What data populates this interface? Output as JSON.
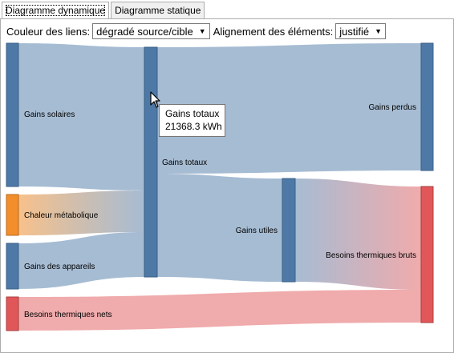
{
  "tabs": [
    {
      "label": "Diagramme dynamique",
      "active": true
    },
    {
      "label": "Diagramme statique",
      "active": false
    }
  ],
  "controls": {
    "link_color_label": "Couleur des liens:",
    "link_color_value": "dégradé source/cible",
    "alignment_label": "Alignement des éléments:",
    "alignment_value": "justifié"
  },
  "nodes": {
    "gains_solaires": {
      "label": "Gains solaires",
      "color": "#4e79a7"
    },
    "chaleur_metabolique": {
      "label": "Chaleur métabolique",
      "color": "#f28e2b"
    },
    "gains_appareils": {
      "label": "Gains des appareils",
      "color": "#4e79a7"
    },
    "besoins_nets": {
      "label": "Besoins thermiques nets",
      "color": "#e15759"
    },
    "gains_totaux": {
      "label": "Gains totaux",
      "color": "#4e79a7"
    },
    "gains_utiles": {
      "label": "Gains utiles",
      "color": "#4e79a7"
    },
    "gains_perdus": {
      "label": "Gains perdus",
      "color": "#4e79a7"
    },
    "besoins_bruts": {
      "label": "Besoins thermiques bruts",
      "color": "#e15759"
    }
  },
  "tooltip": {
    "title": "Gains totaux",
    "value": "21368.3 kWh"
  }
}
